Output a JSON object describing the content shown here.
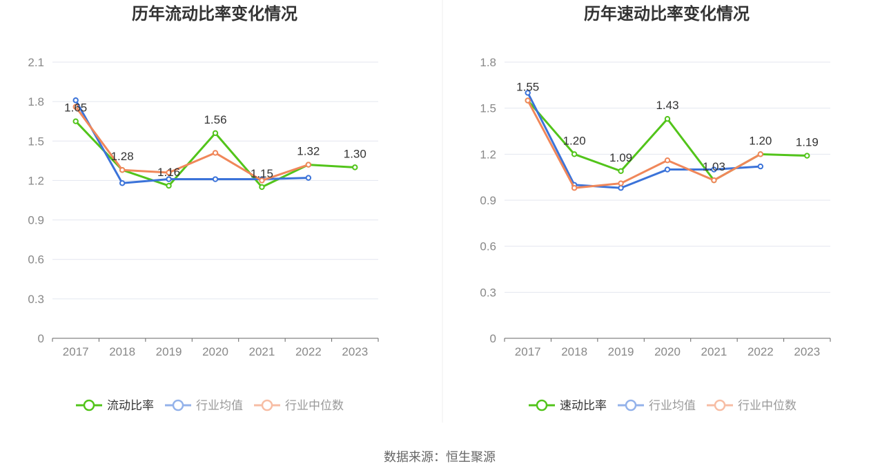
{
  "source_text": "数据来源：恒生聚源",
  "chart_data": [
    {
      "type": "line",
      "title": "历年流动比率变化情况",
      "x": [
        "2017",
        "2018",
        "2019",
        "2020",
        "2021",
        "2022",
        "2023"
      ],
      "ylim": [
        0,
        2.1
      ],
      "yticks": [
        "0",
        "0.3",
        "0.6",
        "0.9",
        "1.2",
        "1.5",
        "1.8",
        "2.1"
      ],
      "grid": true,
      "legend_position": "bottom",
      "series": [
        {
          "name": "流动比率",
          "color": "#52c41a",
          "values": [
            1.65,
            1.28,
            1.16,
            1.56,
            1.15,
            1.32,
            1.3
          ],
          "labels": [
            "1.65",
            "1.28",
            "1.16",
            "1.56",
            "1.15",
            "1.32",
            "1.30"
          ]
        },
        {
          "name": "行业均值",
          "color": "#3b73d9",
          "values": [
            1.81,
            1.18,
            1.21,
            1.21,
            1.21,
            1.22,
            null
          ]
        },
        {
          "name": "行业中位数",
          "color": "#f0875a",
          "values": [
            1.76,
            1.28,
            1.26,
            1.41,
            1.2,
            1.32,
            null
          ]
        }
      ]
    },
    {
      "type": "line",
      "title": "历年速动比率变化情况",
      "x": [
        "2017",
        "2018",
        "2019",
        "2020",
        "2021",
        "2022",
        "2023"
      ],
      "ylim": [
        0,
        1.8
      ],
      "yticks": [
        "0",
        "0.3",
        "0.6",
        "0.9",
        "1.2",
        "1.5",
        "1.8"
      ],
      "grid": true,
      "legend_position": "bottom",
      "series": [
        {
          "name": "速动比率",
          "color": "#52c41a",
          "values": [
            1.55,
            1.2,
            1.09,
            1.43,
            1.03,
            1.2,
            1.19
          ],
          "labels": [
            "1.55",
            "1.20",
            "1.09",
            "1.43",
            "1.03",
            "1.20",
            "1.19"
          ]
        },
        {
          "name": "行业均值",
          "color": "#3b73d9",
          "values": [
            1.6,
            1.0,
            0.98,
            1.1,
            1.1,
            1.12,
            null
          ]
        },
        {
          "name": "行业中位数",
          "color": "#f0875a",
          "values": [
            1.55,
            0.98,
            1.01,
            1.16,
            1.03,
            1.2,
            null
          ]
        }
      ]
    }
  ]
}
